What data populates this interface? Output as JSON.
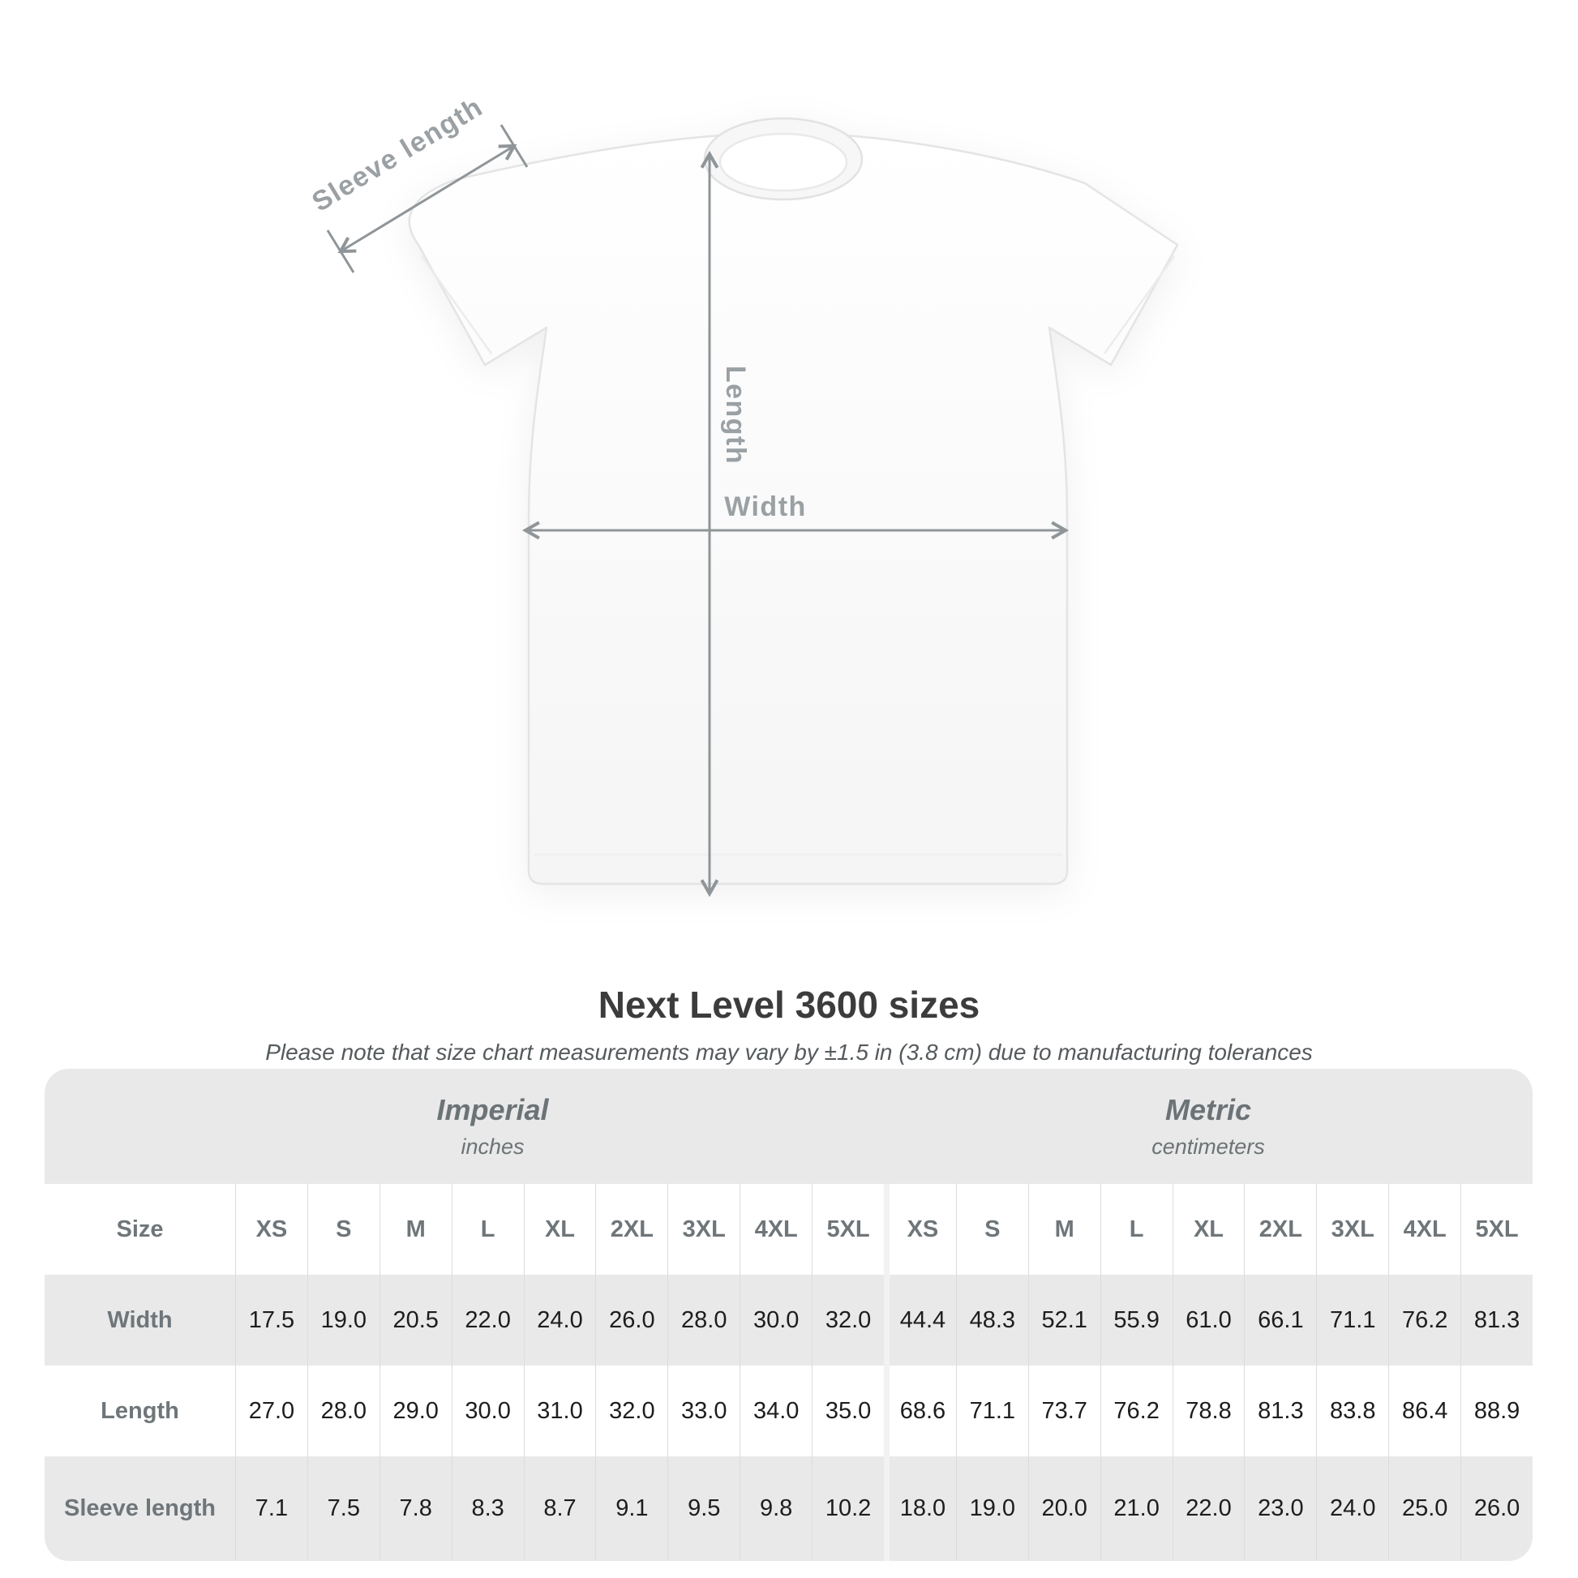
{
  "diagram": {
    "labels": {
      "sleeve_length": "Sleeve length",
      "length": "Length",
      "width": "Width"
    }
  },
  "heading": {
    "title": "Next Level 3600 sizes",
    "subtitle": "Please note that size chart measurements may vary by ±1.5 in (3.8 cm) due to manufacturing tolerances"
  },
  "chart_data": {
    "type": "table",
    "title": "Next Level 3600 sizes",
    "corner_header": "Size",
    "column_groups": [
      {
        "label": "Imperial",
        "sublabel": "inches",
        "span": 9
      },
      {
        "label": "Metric",
        "sublabel": "centimeters",
        "span": 9
      }
    ],
    "sizes": [
      "XS",
      "S",
      "M",
      "L",
      "XL",
      "2XL",
      "3XL",
      "4XL",
      "5XL"
    ],
    "rows": [
      {
        "label": "Width",
        "imperial": [
          "17.5",
          "19.0",
          "20.5",
          "22.0",
          "24.0",
          "26.0",
          "28.0",
          "30.0",
          "32.0"
        ],
        "metric": [
          "44.4",
          "48.3",
          "52.1",
          "55.9",
          "61.0",
          "66.1",
          "71.1",
          "76.2",
          "81.3"
        ]
      },
      {
        "label": "Length",
        "imperial": [
          "27.0",
          "28.0",
          "29.0",
          "30.0",
          "31.0",
          "32.0",
          "33.0",
          "34.0",
          "35.0"
        ],
        "metric": [
          "68.6",
          "71.1",
          "73.7",
          "76.2",
          "78.8",
          "81.3",
          "83.8",
          "86.4",
          "88.9"
        ]
      },
      {
        "label": "Sleeve length",
        "imperial": [
          "7.1",
          "7.5",
          "7.8",
          "8.3",
          "8.7",
          "9.1",
          "9.5",
          "9.8",
          "10.2"
        ],
        "metric": [
          "18.0",
          "19.0",
          "20.0",
          "21.0",
          "22.0",
          "23.0",
          "24.0",
          "25.0",
          "26.0"
        ]
      }
    ]
  },
  "colors": {
    "table_background": "#e9e9e9",
    "row_alt": "#ffffff",
    "header_text": "#6f767a",
    "value_text": "#1d1d1d",
    "dimension_line": "#8f9598",
    "dimension_label": "#9aa0a3"
  }
}
